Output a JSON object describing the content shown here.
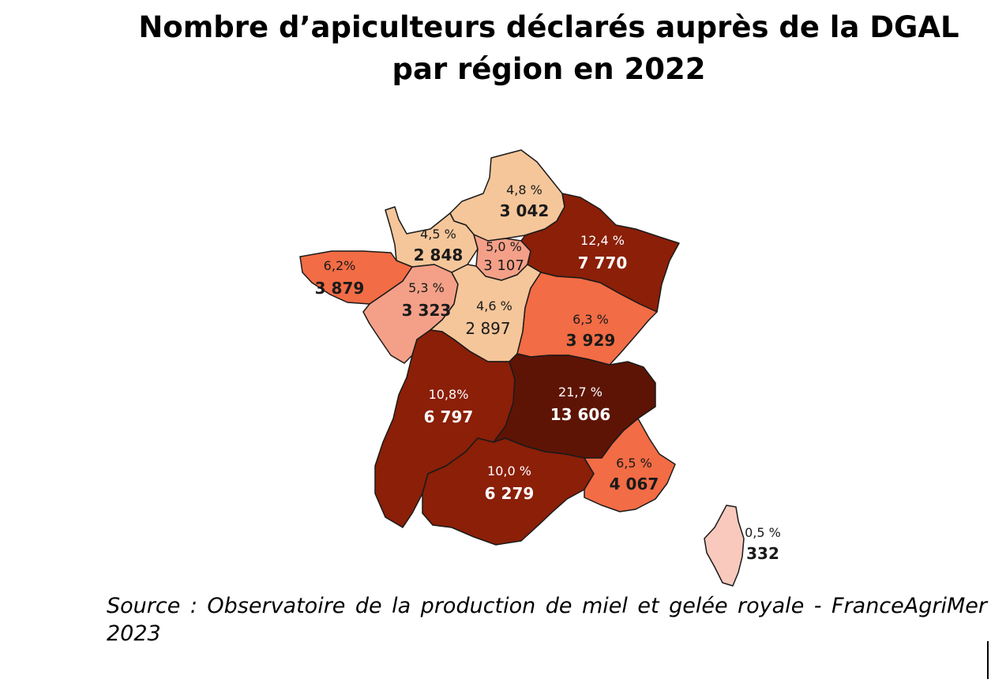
{
  "title": {
    "line1": "Nombre d’apiculteurs déclarés auprès de la DGAL",
    "line2": "par région en 2022"
  },
  "source": "Source : Observatoire de la production de miel et gelée royale - FranceAgriMer 2023",
  "legend_colors": {
    "light": "#f5c69a",
    "pink": "#f4a088",
    "medium": "#f26c45",
    "dark": "#8b1f08",
    "darkest": "#5e1404",
    "corsica": "#f9c9bd",
    "border": "#1a1a1a"
  },
  "regions": [
    {
      "id": "hauts-de-france",
      "percent": "4,8 %",
      "count": "3 042",
      "color": "#f5c69a"
    },
    {
      "id": "normandie",
      "percent": "4,5 %",
      "count": "2 848",
      "color": "#f5c69a"
    },
    {
      "id": "ile-de-france",
      "percent": "5,0 %",
      "count": "3 107",
      "color": "#f4a088"
    },
    {
      "id": "grand-est",
      "percent": "12,4 %",
      "count": "7 770",
      "color": "#8b1f08"
    },
    {
      "id": "bretagne",
      "percent": "6,2%",
      "count": "3 879",
      "color": "#f26c45"
    },
    {
      "id": "pays-de-la-loire",
      "percent": "5,3 %",
      "count": "3 323",
      "color": "#f4a088"
    },
    {
      "id": "centre-val-de-loire",
      "percent": "4,6 %",
      "count": "2 897",
      "color": "#f5c69a"
    },
    {
      "id": "bourgogne-franche-comte",
      "percent": "6,3 %",
      "count": "3 929",
      "color": "#f26c45"
    },
    {
      "id": "nouvelle-aquitaine",
      "percent": "10,8%",
      "count": "6 797",
      "color": "#8b1f08"
    },
    {
      "id": "auvergne-rhone-alpes",
      "percent": "21,7 %",
      "count": "13 606",
      "color": "#5e1404"
    },
    {
      "id": "occitanie",
      "percent": "10,0 %",
      "count": "6 279",
      "color": "#8b1f08"
    },
    {
      "id": "paca",
      "percent": "6,5 %",
      "count": "4 067",
      "color": "#f26c45"
    },
    {
      "id": "corse",
      "percent": "0,5 %",
      "count": "332",
      "color": "#f9c9bd"
    }
  ]
}
